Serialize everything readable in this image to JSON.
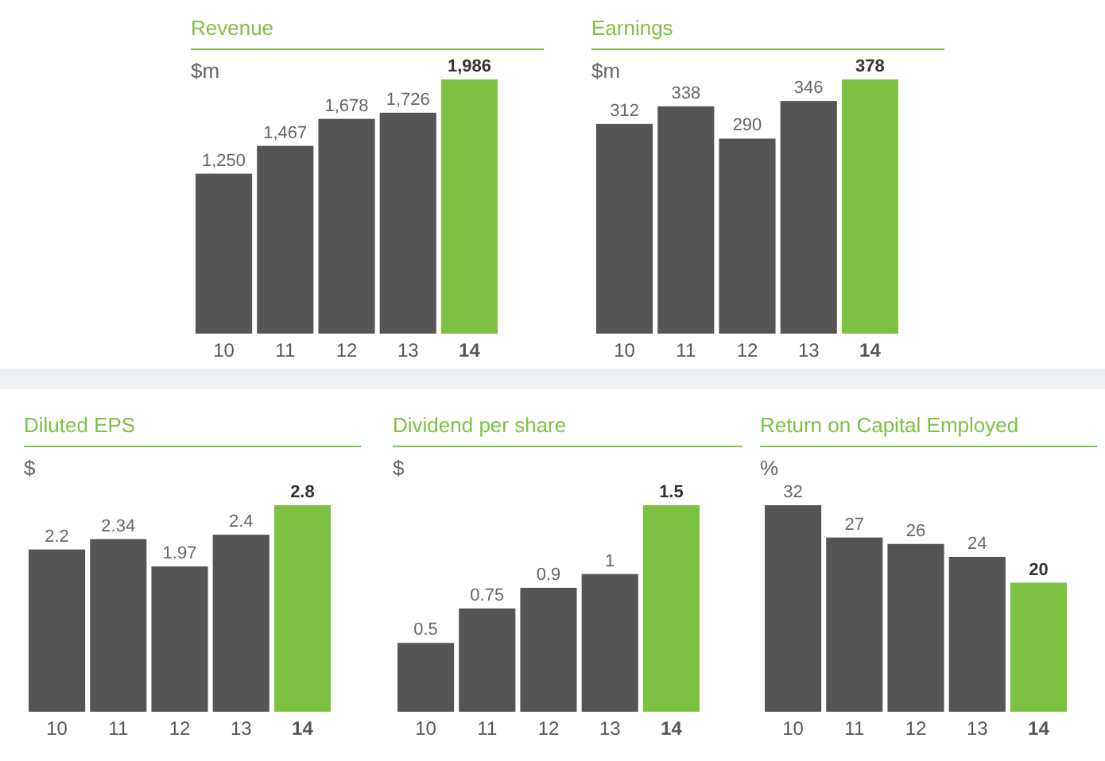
{
  "chart_data": [
    {
      "type": "bar",
      "title": "Revenue",
      "ylabel": "$m",
      "categories": [
        "10",
        "11",
        "12",
        "13",
        "14"
      ],
      "values": [
        1250,
        1467,
        1678,
        1726,
        1986
      ],
      "value_labels": [
        "1,250",
        "1,467",
        "1,678",
        "1,726",
        "1,986"
      ],
      "colors": [
        "#555555",
        "#555555",
        "#555555",
        "#555555",
        "#7dc142"
      ]
    },
    {
      "type": "bar",
      "title": "Earnings",
      "ylabel": "$m",
      "categories": [
        "10",
        "11",
        "12",
        "13",
        "14"
      ],
      "values": [
        312,
        338,
        290,
        346,
        378
      ],
      "data_labels": true,
      "colors": [
        "#555555",
        "#555555",
        "#555555",
        "#555555",
        "#7dc142"
      ]
    },
    {
      "type": "bar",
      "title": "Diluted EPS",
      "ylabel": "$",
      "categories": [
        "10",
        "11",
        "12",
        "13",
        "14"
      ],
      "values": [
        2.2,
        2.34,
        1.97,
        2.4,
        2.8
      ],
      "data_labels": true,
      "colors": [
        "#555555",
        "#555555",
        "#555555",
        "#555555",
        "#7dc142"
      ]
    },
    {
      "type": "bar",
      "title": "Dividend per share",
      "ylabel": "$",
      "categories": [
        "10",
        "11",
        "12",
        "13",
        "14"
      ],
      "values": [
        0.5,
        0.75,
        0.9,
        1,
        1.5
      ],
      "data_labels": true,
      "colors": [
        "#555555",
        "#555555",
        "#555555",
        "#555555",
        "#7dc142"
      ]
    },
    {
      "type": "bar",
      "title": "Return on Capital Employed",
      "ylabel": "%",
      "categories": [
        "10",
        "11",
        "12",
        "13",
        "14"
      ],
      "values": [
        32,
        27,
        26,
        24,
        20
      ],
      "data_labels": true,
      "colors": [
        "#555555",
        "#555555",
        "#555555",
        "#555555",
        "#7dc142"
      ]
    }
  ]
}
